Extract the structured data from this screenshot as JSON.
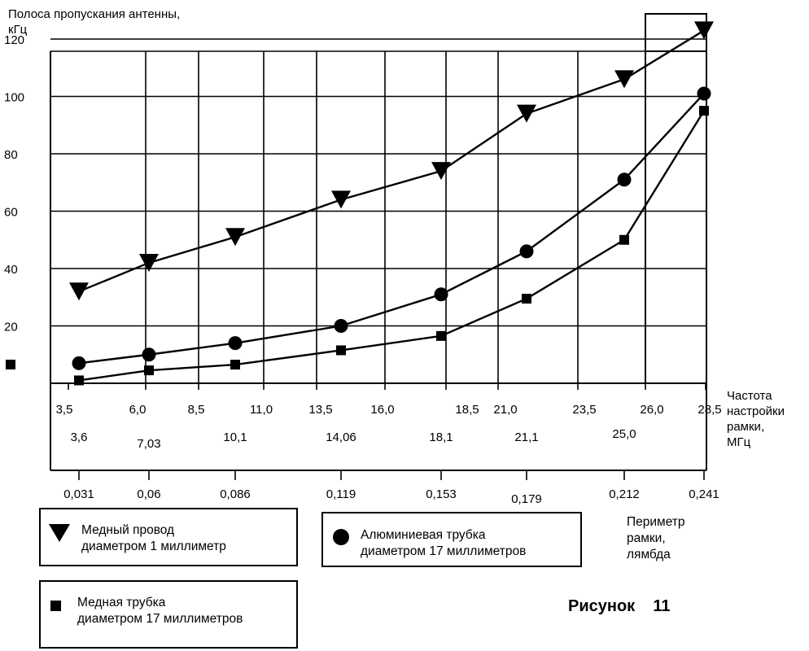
{
  "chart_data": {
    "type": "line",
    "ylabel": "Полоса пропускания антенны,\nкГц",
    "xlabel": "Частота\nнастройки\nрамки,\nМГц",
    "x2label": "Периметр\nрамки,\nлямбда",
    "ylim": [
      0,
      120
    ],
    "yticks": [
      "120",
      "100",
      "80",
      "60",
      "40",
      "20"
    ],
    "xgrid_ticks": [
      "3,5",
      "6,0",
      "8,5",
      "11,0",
      "13,5",
      "16,0",
      "18,5",
      "21,0",
      "23,5",
      "26,0",
      "28,5"
    ],
    "freq_points": [
      "3,6",
      "7,03",
      "10,1",
      "14,06",
      "18,1",
      "21,1",
      "25,0"
    ],
    "perimeter_points": [
      "0,031",
      "0,06",
      "0,086",
      "0,119",
      "0,153",
      "0,179",
      "0,212",
      "0,241"
    ],
    "x": [
      3.6,
      7.03,
      10.1,
      14.06,
      18.1,
      21.1,
      25.0,
      28.5
    ],
    "grid": true,
    "series": [
      {
        "name": "Медный провод\nдиаметром 1 миллиметр",
        "marker": "triangle-down",
        "values": [
          32,
          42,
          51,
          64,
          74,
          94,
          106,
          123
        ]
      },
      {
        "name": "Алюминиевая трубка\nдиаметром 17 миллиметров",
        "marker": "circle",
        "values": [
          7,
          10,
          14,
          20,
          31,
          46,
          71,
          101
        ]
      },
      {
        "name": "Медная трубка\nдиаметром 17 миллиметров",
        "marker": "square",
        "values": [
          1,
          4.5,
          6.5,
          11.5,
          16.5,
          29.5,
          50,
          95
        ]
      }
    ]
  },
  "caption": "Рисунок    11"
}
